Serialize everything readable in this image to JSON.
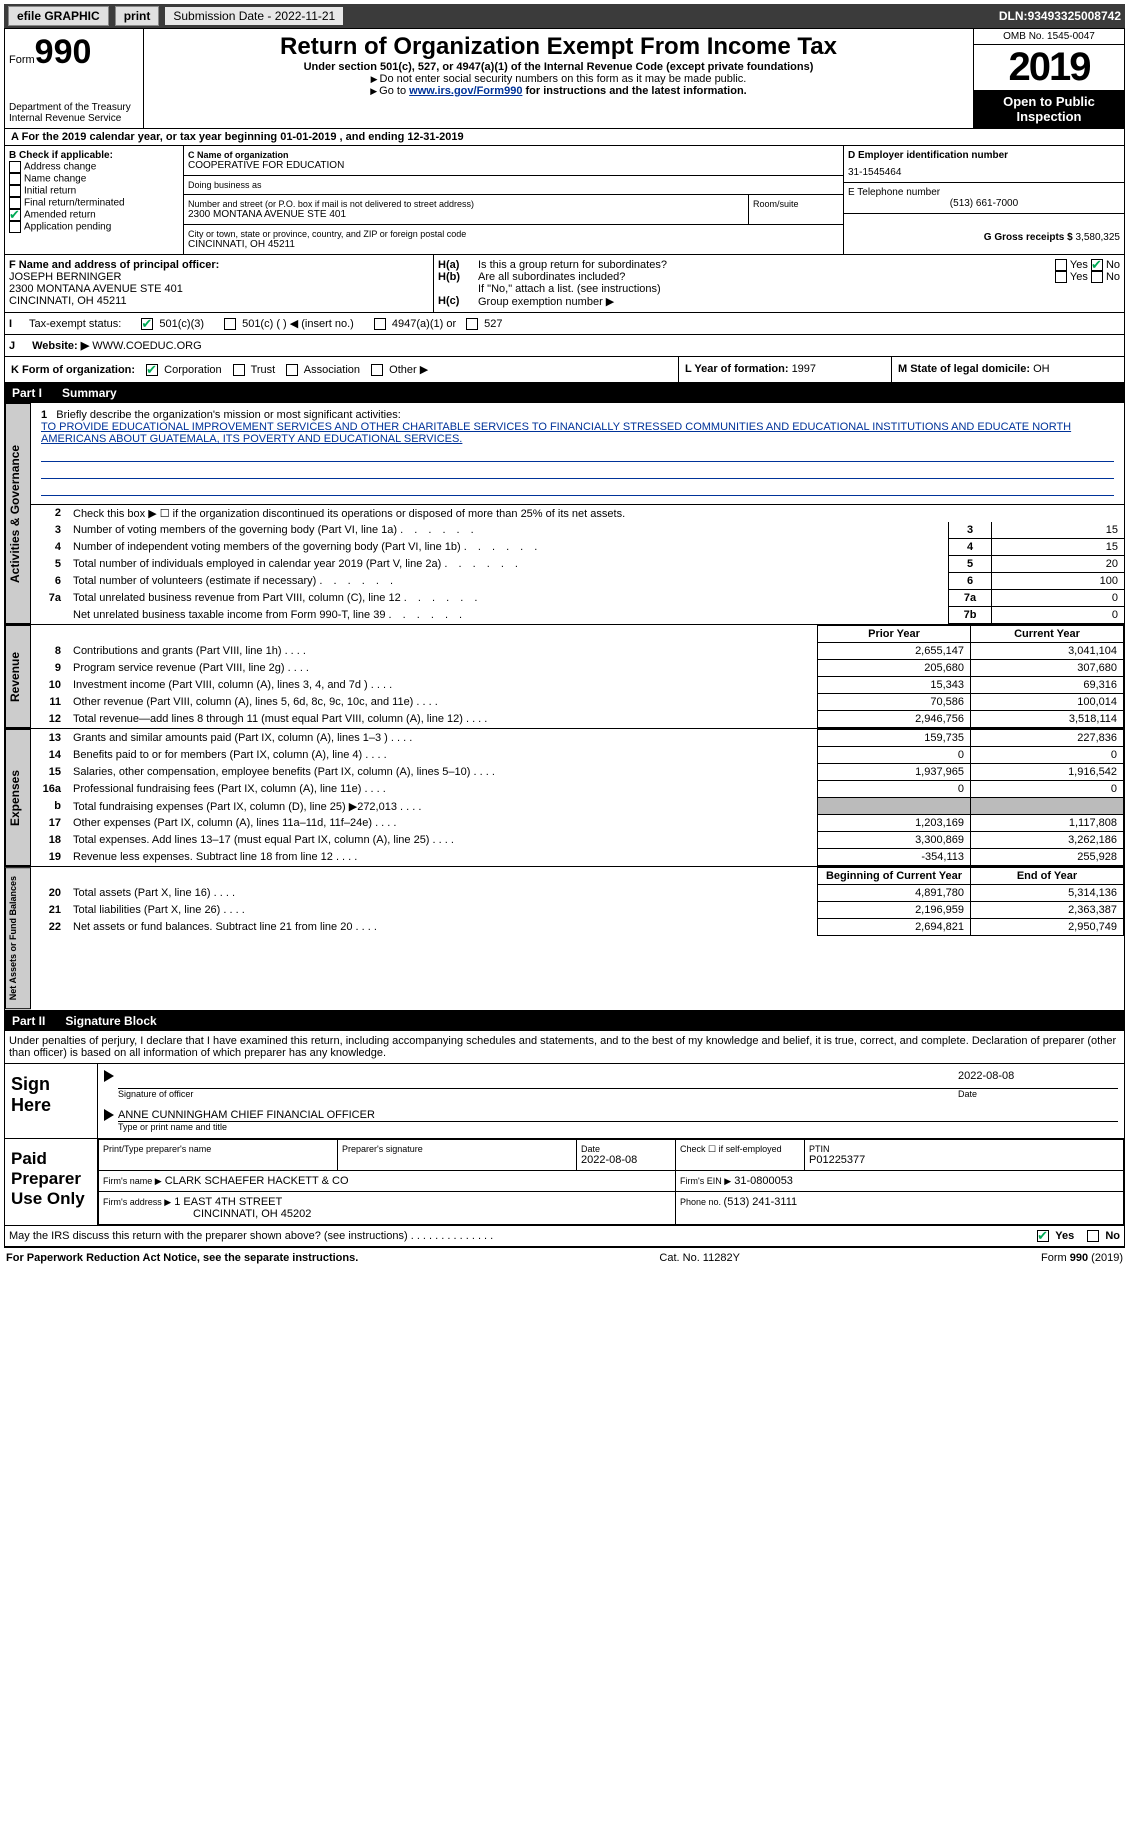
{
  "topbar": {
    "efile": "efile GRAPHIC",
    "print": "print",
    "submission_label": "Submission Date - ",
    "submission_date": "2022-11-21",
    "dln_label": "DLN: ",
    "dln": "93493325008742"
  },
  "header": {
    "form_prefix": "Form",
    "form_number": "990",
    "dept1": "Department of the Treasury",
    "dept2": "Internal Revenue Service",
    "title": "Return of Organization Exempt From Income Tax",
    "subtitle": "Under section 501(c), 527, or 4947(a)(1) of the Internal Revenue Code (except private foundations)",
    "note1": "Do not enter social security numbers on this form as it may be made public.",
    "note2_pre": "Go to ",
    "note2_link": "www.irs.gov/Form990",
    "note2_post": " for instructions and the latest information.",
    "omb": "OMB No. 1545-0047",
    "year": "2019",
    "oti": "Open to Public Inspection"
  },
  "line_a": {
    "text": "For the 2019 calendar year, or tax year beginning 01-01-2019   , and ending 12-31-2019"
  },
  "box_b": {
    "label": "B Check if applicable:",
    "items": [
      "Address change",
      "Name change",
      "Initial return",
      "Final return/terminated",
      "Amended return",
      "Application pending"
    ],
    "checked_index": 4
  },
  "box_c": {
    "name_label": "C Name of organization",
    "name": "COOPERATIVE FOR EDUCATION",
    "dba_label": "Doing business as",
    "dba": "",
    "addr_label": "Number and street (or P.O. box if mail is not delivered to street address)",
    "room_label": "Room/suite",
    "addr": "2300 MONTANA AVENUE STE 401",
    "city_label": "City or town, state or province, country, and ZIP or foreign postal code",
    "city": "CINCINNATI, OH  45211"
  },
  "box_d": {
    "ein_label": "D Employer identification number",
    "ein": "31-1545464",
    "phone_label": "E Telephone number",
    "phone": "(513) 661-7000",
    "gross_label": "G Gross receipts $ ",
    "gross": "3,580,325"
  },
  "box_f": {
    "label": "F Name and address of principal officer:",
    "name": "JOSEPH BERNINGER",
    "addr1": "2300 MONTANA AVENUE STE 401",
    "addr2": "CINCINNATI, OH  45211"
  },
  "box_h": {
    "ha_label": "Is this a group return for subordinates?",
    "ha_prefix": "H(a)",
    "hb_prefix": "H(b)",
    "hb_label": "Are all subordinates included?",
    "hb_note": "If \"No,\" attach a list. (see instructions)",
    "hc_prefix": "H(c)",
    "hc_label": "Group exemption number ▶",
    "yes": "Yes",
    "no": "No"
  },
  "box_i": {
    "label": "Tax-exempt status:",
    "opt1": "501(c)(3)",
    "opt2": "501(c) (   ) ◀ (insert no.)",
    "opt3": "4947(a)(1) or",
    "opt4": "527"
  },
  "box_j": {
    "label": "Website: ▶",
    "value": "WWW.COEDUC.ORG"
  },
  "box_k": {
    "label": "K Form of organization:",
    "opts": [
      "Corporation",
      "Trust",
      "Association",
      "Other ▶"
    ],
    "checked": 0
  },
  "box_l": {
    "label": "L Year of formation: ",
    "value": "1997"
  },
  "box_m": {
    "label": "M State of legal domicile: ",
    "value": "OH"
  },
  "part1": {
    "header_num": "Part I",
    "header_title": "Summary",
    "line1_label": "Briefly describe the organization's mission or most significant activities:",
    "line1_text": "TO PROVIDE EDUCATIONAL IMPROVEMENT SERVICES AND OTHER CHARITABLE SERVICES TO FINANCIALLY STRESSED COMMUNITIES AND EDUCATIONAL INSTITUTIONS AND EDUCATE NORTH AMERICANS ABOUT GUATEMALA, ITS POVERTY AND EDUCATIONAL SERVICES.",
    "line2": "Check this box ▶ ☐  if the organization discontinued its operations or disposed of more than 25% of its net assets.",
    "governance_rows": [
      {
        "n": "3",
        "label": "Number of voting members of the governing body (Part VI, line 1a)",
        "box": "3",
        "val": "15"
      },
      {
        "n": "4",
        "label": "Number of independent voting members of the governing body (Part VI, line 1b)",
        "box": "4",
        "val": "15"
      },
      {
        "n": "5",
        "label": "Total number of individuals employed in calendar year 2019 (Part V, line 2a)",
        "box": "5",
        "val": "20"
      },
      {
        "n": "6",
        "label": "Total number of volunteers (estimate if necessary)",
        "box": "6",
        "val": "100"
      },
      {
        "n": "7a",
        "label": "Total unrelated business revenue from Part VIII, column (C), line 12",
        "box": "7a",
        "val": "0"
      },
      {
        "n": "",
        "label": "Net unrelated business taxable income from Form 990-T, line 39",
        "box": "7b",
        "val": "0"
      }
    ],
    "vtab_gov": "Activities & Governance",
    "vtab_rev": "Revenue",
    "vtab_exp": "Expenses",
    "vtab_net": "Net Assets or Fund Balances",
    "col_prior": "Prior Year",
    "col_current": "Current Year",
    "col_begin": "Beginning of Current Year",
    "col_end": "End of Year",
    "revenue_rows": [
      {
        "n": "8",
        "label": "Contributions and grants (Part VIII, line 1h)",
        "prior": "2,655,147",
        "current": "3,041,104"
      },
      {
        "n": "9",
        "label": "Program service revenue (Part VIII, line 2g)",
        "prior": "205,680",
        "current": "307,680"
      },
      {
        "n": "10",
        "label": "Investment income (Part VIII, column (A), lines 3, 4, and 7d )",
        "prior": "15,343",
        "current": "69,316"
      },
      {
        "n": "11",
        "label": "Other revenue (Part VIII, column (A), lines 5, 6d, 8c, 9c, 10c, and 11e)",
        "prior": "70,586",
        "current": "100,014"
      },
      {
        "n": "12",
        "label": "Total revenue—add lines 8 through 11 (must equal Part VIII, column (A), line 12)",
        "prior": "2,946,756",
        "current": "3,518,114"
      }
    ],
    "expense_rows": [
      {
        "n": "13",
        "label": "Grants and similar amounts paid (Part IX, column (A), lines 1–3 )",
        "prior": "159,735",
        "current": "227,836"
      },
      {
        "n": "14",
        "label": "Benefits paid to or for members (Part IX, column (A), line 4)",
        "prior": "0",
        "current": "0"
      },
      {
        "n": "15",
        "label": "Salaries, other compensation, employee benefits (Part IX, column (A), lines 5–10)",
        "prior": "1,937,965",
        "current": "1,916,542"
      },
      {
        "n": "16a",
        "label": "Professional fundraising fees (Part IX, column (A), line 11e)",
        "prior": "0",
        "current": "0"
      },
      {
        "n": "b",
        "label": "Total fundraising expenses (Part IX, column (D), line 25) ▶272,013",
        "prior": "SHADED",
        "current": "SHADED"
      },
      {
        "n": "17",
        "label": "Other expenses (Part IX, column (A), lines 11a–11d, 11f–24e)",
        "prior": "1,203,169",
        "current": "1,117,808"
      },
      {
        "n": "18",
        "label": "Total expenses. Add lines 13–17 (must equal Part IX, column (A), line 25)",
        "prior": "3,300,869",
        "current": "3,262,186"
      },
      {
        "n": "19",
        "label": "Revenue less expenses. Subtract line 18 from line 12",
        "prior": "-354,113",
        "current": "255,928"
      }
    ],
    "net_rows": [
      {
        "n": "20",
        "label": "Total assets (Part X, line 16)",
        "prior": "4,891,780",
        "current": "5,314,136"
      },
      {
        "n": "21",
        "label": "Total liabilities (Part X, line 26)",
        "prior": "2,196,959",
        "current": "2,363,387"
      },
      {
        "n": "22",
        "label": "Net assets or fund balances. Subtract line 21 from line 20",
        "prior": "2,694,821",
        "current": "2,950,749"
      }
    ]
  },
  "part2": {
    "header_num": "Part II",
    "header_title": "Signature Block",
    "penalty": "Under penalties of perjury, I declare that I have examined this return, including accompanying schedules and statements, and to the best of my knowledge and belief, it is true, correct, and complete. Declaration of preparer (other than officer) is based on all information of which preparer has any knowledge.",
    "sign_here": "Sign Here",
    "sig_officer": "Signature of officer",
    "sig_date_label": "Date",
    "sig_date": "2022-08-08",
    "officer_name": "ANNE CUNNINGHAM  CHIEF FINANCIAL OFFICER",
    "officer_type": "Type or print name and title",
    "paid_label": "Paid Preparer Use Only",
    "prep_name_label": "Print/Type preparer's name",
    "prep_sig_label": "Preparer's signature",
    "prep_date_label": "Date",
    "prep_date": "2022-08-08",
    "prep_check_label": "Check ☐ if self-employed",
    "ptin_label": "PTIN",
    "ptin": "P01225377",
    "firm_name_label": "Firm's name    ▶",
    "firm_name": "CLARK SCHAEFER HACKETT & CO",
    "firm_ein_label": "Firm's EIN ▶",
    "firm_ein": "31-0800053",
    "firm_addr_label": "Firm's address ▶",
    "firm_addr1": "1 EAST 4TH STREET",
    "firm_addr2": "CINCINNATI, OH  45202",
    "firm_phone_label": "Phone no. ",
    "firm_phone": "(513) 241-3111",
    "discuss": "May the IRS discuss this return with the preparer shown above? (see instructions)",
    "yes": "Yes",
    "no": "No"
  },
  "footer": {
    "pra": "For Paperwork Reduction Act Notice, see the separate instructions.",
    "cat": "Cat. No. 11282Y",
    "form": "Form 990 (2019)"
  },
  "colors": {
    "link": "#003399",
    "header_bg": "#3b3b3b",
    "check_green": "#0a8030"
  }
}
